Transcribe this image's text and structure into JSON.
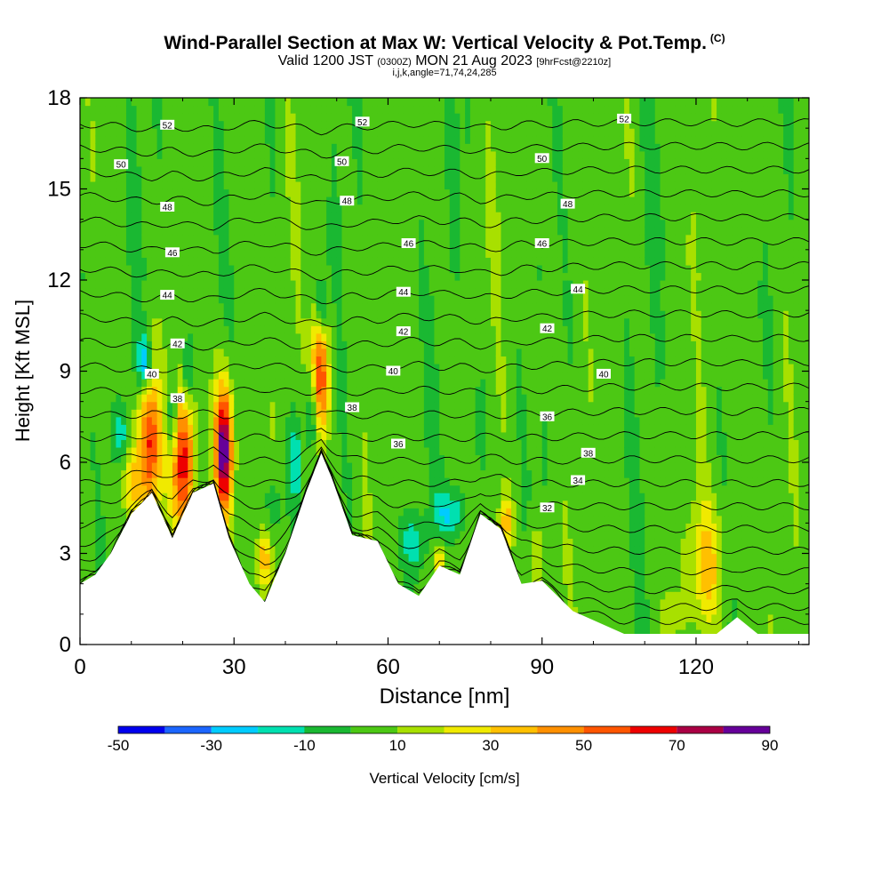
{
  "header": {
    "title_main": "Wind-Parallel Section at Max W: Vertical Velocity & Pot.Temp.",
    "title_copyright": "(C)",
    "subtitle_prefix": "Valid 1200 JST",
    "subtitle_utc": "(0300Z)",
    "subtitle_date": "MON 21 Aug 2023",
    "subtitle_fcst": "[9hrFcst@2210z]",
    "params": "i,j,k,angle=71,74,24,285"
  },
  "chart_data": {
    "type": "heatmap",
    "xlabel": "Distance [nm]",
    "ylabel": "Height [Kft MSL]",
    "xlim": [
      0,
      142
    ],
    "ylim": [
      0,
      18
    ],
    "x_ticks": [
      0,
      30,
      60,
      90,
      120
    ],
    "y_ticks": [
      0,
      3,
      6,
      9,
      12,
      15,
      18
    ],
    "colorbar": {
      "label": "Vertical Velocity [cm/s]",
      "ticks": [
        -50,
        -30,
        -10,
        10,
        30,
        50,
        70,
        90
      ],
      "levels": [
        -50,
        -40,
        -30,
        -20,
        -10,
        0,
        10,
        20,
        30,
        40,
        50,
        60,
        70,
        80,
        90
      ],
      "colors": [
        "#0000ee",
        "#1c66ff",
        "#00ccff",
        "#00e0b0",
        "#1ab832",
        "#4cc814",
        "#a8e000",
        "#f0ea00",
        "#ffc000",
        "#ff9000",
        "#ff5500",
        "#ee0000",
        "#aa0044",
        "#660099"
      ]
    },
    "terrain_kft": [
      [
        0,
        2
      ],
      [
        3,
        2.3
      ],
      [
        6,
        3
      ],
      [
        10,
        4.3
      ],
      [
        14,
        5
      ],
      [
        18,
        3.5
      ],
      [
        22,
        5
      ],
      [
        26,
        5.3
      ],
      [
        29,
        3.5
      ],
      [
        33,
        2
      ],
      [
        36,
        1.4
      ],
      [
        40,
        3
      ],
      [
        44,
        5
      ],
      [
        47,
        6.3
      ],
      [
        49,
        5.5
      ],
      [
        53,
        3.6
      ],
      [
        58,
        3.4
      ],
      [
        62,
        2
      ],
      [
        66,
        1.6
      ],
      [
        70,
        2.6
      ],
      [
        74,
        2.3
      ],
      [
        78,
        4.3
      ],
      [
        82,
        3.8
      ],
      [
        86,
        2
      ],
      [
        90,
        2.1
      ],
      [
        96,
        1.1
      ],
      [
        106,
        0.35
      ],
      [
        124,
        0.35
      ],
      [
        128,
        0.9
      ],
      [
        132,
        0.35
      ],
      [
        142,
        0.35
      ]
    ],
    "isentrope_label_values": [
      32,
      34,
      36,
      38,
      40,
      42,
      44,
      46,
      48,
      50,
      52
    ],
    "isentrope_labels": [
      {
        "text": "52",
        "x": 17,
        "y": 17.1
      },
      {
        "text": "52",
        "x": 55,
        "y": 17.2
      },
      {
        "text": "52",
        "x": 106,
        "y": 17.3
      },
      {
        "text": "50",
        "x": 8,
        "y": 15.8
      },
      {
        "text": "50",
        "x": 51,
        "y": 15.9
      },
      {
        "text": "50",
        "x": 90,
        "y": 16
      },
      {
        "text": "48",
        "x": 17,
        "y": 14.4
      },
      {
        "text": "48",
        "x": 52,
        "y": 14.6
      },
      {
        "text": "48",
        "x": 95,
        "y": 14.5
      },
      {
        "text": "46",
        "x": 18,
        "y": 12.9
      },
      {
        "text": "46",
        "x": 64,
        "y": 13.2
      },
      {
        "text": "46",
        "x": 90,
        "y": 13.2
      },
      {
        "text": "44",
        "x": 17,
        "y": 11.5
      },
      {
        "text": "44",
        "x": 63,
        "y": 11.6
      },
      {
        "text": "44",
        "x": 97,
        "y": 11.7
      },
      {
        "text": "42",
        "x": 19,
        "y": 9.9
      },
      {
        "text": "42",
        "x": 63,
        "y": 10.3
      },
      {
        "text": "42",
        "x": 91,
        "y": 10.4
      },
      {
        "text": "40",
        "x": 14,
        "y": 8.9
      },
      {
        "text": "40",
        "x": 61,
        "y": 9
      },
      {
        "text": "40",
        "x": 102,
        "y": 8.9
      },
      {
        "text": "38",
        "x": 19,
        "y": 8.1
      },
      {
        "text": "38",
        "x": 53,
        "y": 7.8
      },
      {
        "text": "38",
        "x": 99,
        "y": 6.3
      },
      {
        "text": "36",
        "x": 62,
        "y": 6.6
      },
      {
        "text": "36",
        "x": 91,
        "y": 7.5
      },
      {
        "text": "34",
        "x": 97,
        "y": 5.4
      },
      {
        "text": "32",
        "x": 91,
        "y": 4.5
      }
    ],
    "updraft_cores": [
      {
        "x": 13.5,
        "y": 6.6,
        "w": 2,
        "sx": 2.2,
        "sy": 2.3,
        "value": 60
      },
      {
        "x": 20,
        "y": 6,
        "w": 2,
        "sx": 2.2,
        "sy": 2.3,
        "value": 60
      },
      {
        "x": 28,
        "y": 6.4,
        "w": 2,
        "sx": 1.8,
        "sy": 2.2,
        "value": 85
      },
      {
        "x": 46.5,
        "y": 8.6,
        "w": 2,
        "sx": 1.8,
        "sy": 2.0,
        "value": 75
      },
      {
        "x": 10,
        "y": 5.2,
        "w": 2,
        "sx": 1.8,
        "sy": 1.2,
        "value": 25
      },
      {
        "x": 36,
        "y": 2.8,
        "w": 2,
        "sx": 1.2,
        "sy": 1,
        "value": 35
      },
      {
        "x": 70,
        "y": 2.8,
        "w": 2,
        "sx": 1.2,
        "sy": 0.8,
        "value": 30
      },
      {
        "x": 83,
        "y": 4,
        "w": 2,
        "sx": 1.4,
        "sy": 0.9,
        "value": 30
      },
      {
        "x": 89,
        "y": 2.8,
        "w": 2,
        "sx": 1.2,
        "sy": 1.3,
        "value": 20
      },
      {
        "x": 122,
        "y": 2.6,
        "w": 2,
        "sx": 3.2,
        "sy": 2.0,
        "value": 30
      },
      {
        "x": 115,
        "y": 1.0,
        "w": 2,
        "sx": 1.5,
        "sy": 0.6,
        "value": 15
      },
      {
        "x": 45.5,
        "y": 7.9,
        "w": 2,
        "sx": 1.4,
        "sy": 1.6,
        "value": -45
      },
      {
        "x": 12.5,
        "y": 9.3,
        "w": 2,
        "sx": 1.4,
        "sy": 0.9,
        "value": -35
      },
      {
        "x": 18,
        "y": 7.5,
        "w": 2,
        "sx": 1.1,
        "sy": 1.3,
        "value": -25
      },
      {
        "x": 21,
        "y": 9,
        "w": 2,
        "sx": 1.0,
        "sy": 1.2,
        "value": -25
      },
      {
        "x": 42,
        "y": 6,
        "w": 2,
        "sx": 1.2,
        "sy": 1.4,
        "value": -20
      },
      {
        "x": 47,
        "y": 11,
        "w": 2,
        "sx": 0.8,
        "sy": 0.9,
        "value": -25
      },
      {
        "x": 65,
        "y": 3.4,
        "w": 2,
        "sx": 2.5,
        "sy": 0.8,
        "value": -20
      },
      {
        "x": 72,
        "y": 4.3,
        "w": 2,
        "sx": 3,
        "sy": 0.8,
        "value": -25
      },
      {
        "x": 78,
        "y": 7.2,
        "w": 2,
        "sx": 1.0,
        "sy": 1.4,
        "value": -18
      },
      {
        "x": 38,
        "y": 4.5,
        "w": 2,
        "sx": 2.0,
        "sy": 1.2,
        "value": -15
      },
      {
        "x": 8,
        "y": 7.0,
        "w": 2,
        "sx": 1.5,
        "sy": 0.8,
        "value": -18
      }
    ]
  }
}
